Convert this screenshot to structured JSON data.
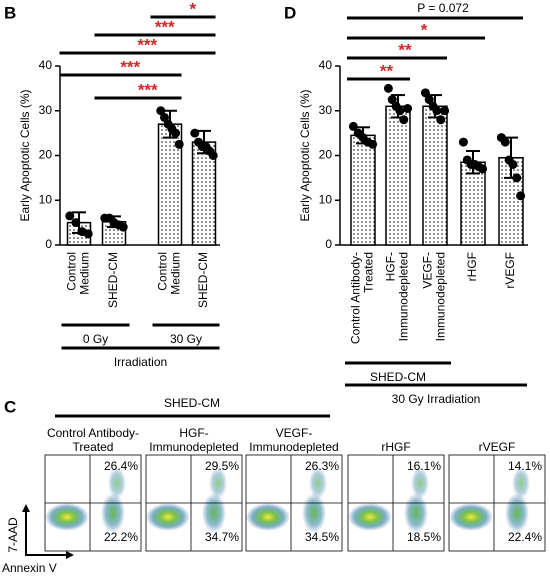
{
  "chart_data": [
    {
      "type": "bar",
      "panel": "B",
      "ylabel": "Early Apoptotic Cells (%)",
      "categories": [
        [
          "Control",
          "Medium"
        ],
        [
          "SHED-CM"
        ],
        [
          "Control",
          "Medium"
        ],
        [
          "SHED-CM"
        ]
      ],
      "values": [
        5,
        5.2,
        27,
        23
      ],
      "errors": [
        2.3,
        1.2,
        3,
        2.5
      ],
      "points": [
        [
          6.5,
          5,
          3,
          2.5
        ],
        [
          6,
          6,
          5,
          4.5,
          4
        ],
        [
          30,
          28.5,
          27,
          26,
          25,
          22.5
        ],
        [
          25,
          23,
          22,
          22,
          21,
          20
        ]
      ],
      "color": "#000000",
      "ylim": [
        0,
        40
      ],
      "yticks": [
        0,
        10,
        20,
        30,
        40
      ],
      "comparisons": [
        {
          "from": 2,
          "to": 3,
          "label": "*"
        },
        {
          "from": 1,
          "to": 3,
          "label": "***"
        },
        {
          "from": 0,
          "to": 3,
          "label": "***"
        },
        {
          "from": 0,
          "to": 2,
          "label": "***"
        },
        {
          "from": 1,
          "to": 2,
          "label": "***"
        }
      ],
      "groups": [
        {
          "label": "0 Gy",
          "from": 0,
          "to": 1,
          "level": 0
        },
        {
          "label": "30 Gy",
          "from": 2,
          "to": 3,
          "level": 0
        },
        {
          "label": "Irradiation",
          "from": 0,
          "to": 3,
          "level": 1
        }
      ]
    },
    {
      "type": "bar",
      "panel": "D",
      "ylabel": "Early Apoptotic Cells (%)",
      "categories": [
        [
          "Control Antibody-",
          "Treated"
        ],
        [
          "HGF-",
          "Immunodepleted"
        ],
        [
          "VEGF-",
          "Immunodepleted"
        ],
        [
          "rHGF"
        ],
        [
          "rVEGF"
        ]
      ],
      "values": [
        24.5,
        31,
        31,
        18.5,
        19.5
      ],
      "errors": [
        1.8,
        2.5,
        2.5,
        2.5,
        4.5
      ],
      "points": [
        [
          26.5,
          25,
          24,
          23,
          22.5
        ],
        [
          35,
          32.5,
          31,
          30,
          28,
          30.5
        ],
        [
          34,
          32.5,
          31,
          30,
          28,
          30
        ],
        [
          23,
          19,
          18,
          18,
          17.5,
          17
        ],
        [
          24,
          23,
          19,
          18,
          15,
          11
        ]
      ],
      "color": "#000000",
      "ylim": [
        0,
        40
      ],
      "yticks": [
        0,
        10,
        20,
        30,
        40
      ],
      "comparisons": [
        {
          "from": 0,
          "to": 4,
          "label": "P = 0.072"
        },
        {
          "from": 0,
          "to": 3,
          "label": "*"
        },
        {
          "from": 0,
          "to": 2,
          "label": "**"
        },
        {
          "from": 0,
          "to": 1,
          "label": "**"
        }
      ],
      "groups": [
        {
          "label": "SHED-CM",
          "from": 0,
          "to": 2,
          "level": 0
        },
        {
          "label": "30 Gy Irradiation",
          "from": 0,
          "to": 4,
          "level": 1
        }
      ]
    }
  ],
  "flow_panel": {
    "panel": "C",
    "title": "SHED-CM",
    "x_label": "Annexin V",
    "y_label": "7-AAD",
    "plots": [
      {
        "title": [
          "Control Antibody-",
          "Treated"
        ],
        "upper_right": "26.4%",
        "lower_right": "22.2%"
      },
      {
        "title": [
          "HGF-",
          "Immunodepleted"
        ],
        "upper_right": "29.5%",
        "lower_right": "34.7%"
      },
      {
        "title": [
          "VEGF-",
          "Immunodepleted"
        ],
        "upper_right": "26.3%",
        "lower_right": "34.5%"
      },
      {
        "title": [
          "rHGF"
        ],
        "upper_right": "16.1%",
        "lower_right": "18.5%"
      },
      {
        "title": [
          "rVEGF"
        ],
        "upper_right": "14.1%",
        "lower_right": "22.4%"
      }
    ]
  }
}
